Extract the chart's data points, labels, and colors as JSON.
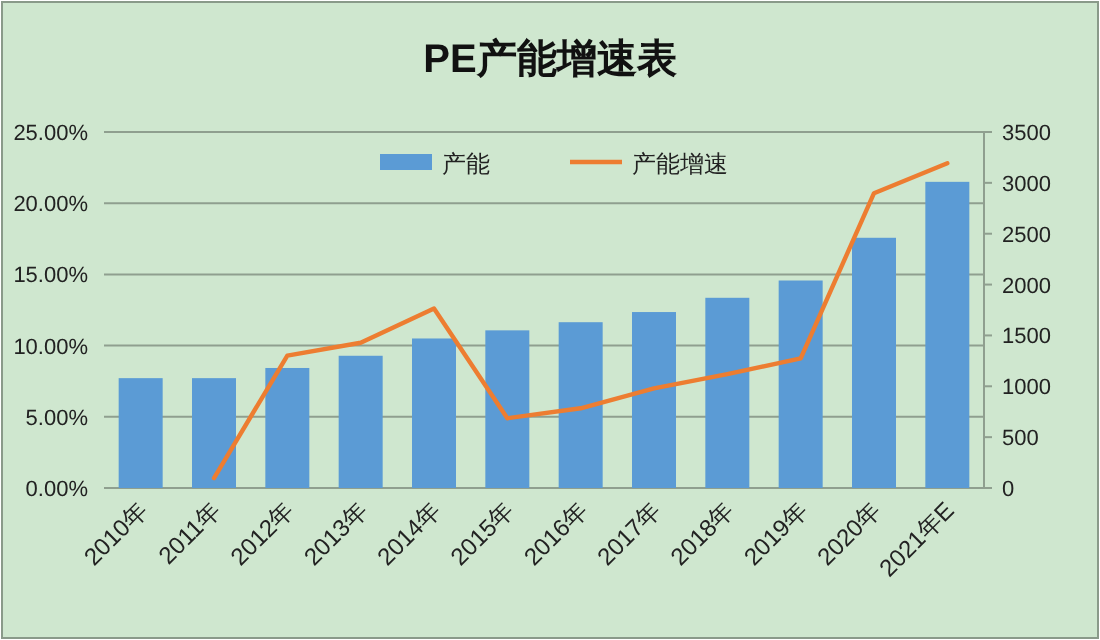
{
  "chart_data": {
    "type": "bar",
    "title": "PE产能增速表",
    "categories": [
      "2010年",
      "2011年",
      "2012年",
      "2013年",
      "2014年",
      "2015年",
      "2016年",
      "2017年",
      "2018年",
      "2019年",
      "2020年",
      "2021年E"
    ],
    "series": [
      {
        "name": "产能",
        "axis": "y2",
        "color": "#5b9bd5",
        "values": [
          1080,
          1080,
          1180,
          1300,
          1470,
          1550,
          1630,
          1730,
          1870,
          2040,
          2460,
          3010
        ]
      },
      {
        "name": "产能增速",
        "type": "line",
        "axis": "y",
        "color": "#ed7d31",
        "values": [
          null,
          0.7,
          9.3,
          10.2,
          12.6,
          4.9,
          5.6,
          7.0,
          8.0,
          9.1,
          20.7,
          22.8
        ]
      }
    ],
    "ylim": [
      0,
      25
    ],
    "yticks": [
      {
        "value": 0,
        "label": "0.00%"
      },
      {
        "value": 5,
        "label": "5.00%"
      },
      {
        "value": 10,
        "label": "10.00%"
      },
      {
        "value": 15,
        "label": "15.00%"
      },
      {
        "value": 20,
        "label": "20.00%"
      },
      {
        "value": 25,
        "label": "25.00%"
      }
    ],
    "y2lim": [
      0,
      3500
    ],
    "y2ticks": [
      0,
      500,
      1000,
      1500,
      2000,
      2500,
      3000,
      3500
    ],
    "grid": "y",
    "legend": "top",
    "marker": "none",
    "line_style": "solid"
  }
}
